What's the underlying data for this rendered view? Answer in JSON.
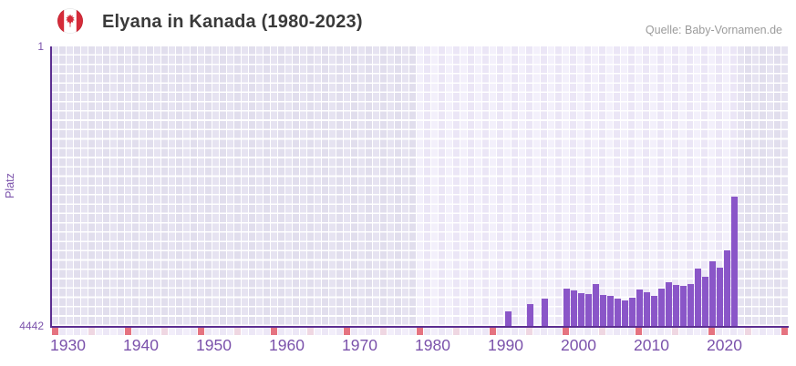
{
  "header": {
    "flag_icon": "canada-flag-icon",
    "source": "Quelle: Baby-Vornamen.de"
  },
  "chart_data": {
    "type": "bar",
    "title": "Elyana in Kanada (1980-2023)",
    "ylabel": "Platz",
    "y_axis": {
      "top_tick_label": "1",
      "bottom_tick_label": "4442",
      "min": 1,
      "max": 4442,
      "inverted": true,
      "note": "rank 1 at top, bars grow upward from 4442 baseline"
    },
    "x_axis": {
      "tick_labels": [
        "1930",
        "1940",
        "1950",
        "1960",
        "1970",
        "1980",
        "1990",
        "2000",
        "2010",
        "2020"
      ],
      "display_year_start": 1930,
      "display_year_end": 2030,
      "data_range_highlight": [
        1980,
        2023
      ]
    },
    "series": [
      {
        "year": 1992,
        "rank": 4210
      },
      {
        "year": 1995,
        "rank": 4100
      },
      {
        "year": 1997,
        "rank": 4010
      },
      {
        "year": 2000,
        "rank": 3850
      },
      {
        "year": 2001,
        "rank": 3880
      },
      {
        "year": 2002,
        "rank": 3920
      },
      {
        "year": 2003,
        "rank": 3935
      },
      {
        "year": 2004,
        "rank": 3775
      },
      {
        "year": 2005,
        "rank": 3950
      },
      {
        "year": 2006,
        "rank": 3965
      },
      {
        "year": 2007,
        "rank": 4010
      },
      {
        "year": 2008,
        "rank": 4040
      },
      {
        "year": 2009,
        "rank": 3995
      },
      {
        "year": 2010,
        "rank": 3865
      },
      {
        "year": 2011,
        "rank": 3910
      },
      {
        "year": 2012,
        "rank": 3965
      },
      {
        "year": 2013,
        "rank": 3850
      },
      {
        "year": 2014,
        "rank": 3750
      },
      {
        "year": 2015,
        "rank": 3790
      },
      {
        "year": 2016,
        "rank": 3810
      },
      {
        "year": 2017,
        "rank": 3775
      },
      {
        "year": 2018,
        "rank": 3530
      },
      {
        "year": 2019,
        "rank": 3660
      },
      {
        "year": 2020,
        "rank": 3415
      },
      {
        "year": 2021,
        "rank": 3515
      },
      {
        "year": 2022,
        "rank": 3240
      },
      {
        "year": 2023,
        "rank": 2390
      }
    ],
    "colors": {
      "bar": "#8a56c8",
      "axis_line": "#5c2e91",
      "axis_text": "#7b52ab",
      "strip_decade": "#e57380",
      "strip_half_decade": "#efd7e2",
      "strip_plain_even": "#f2eefa",
      "strip_plain_odd": "#ece7f6",
      "title_text": "#3a3a3a",
      "source_text": "#9b9b9b"
    },
    "legend": "none",
    "grid": "lavender cell grid, lighter inside 1980-2023 data range"
  }
}
